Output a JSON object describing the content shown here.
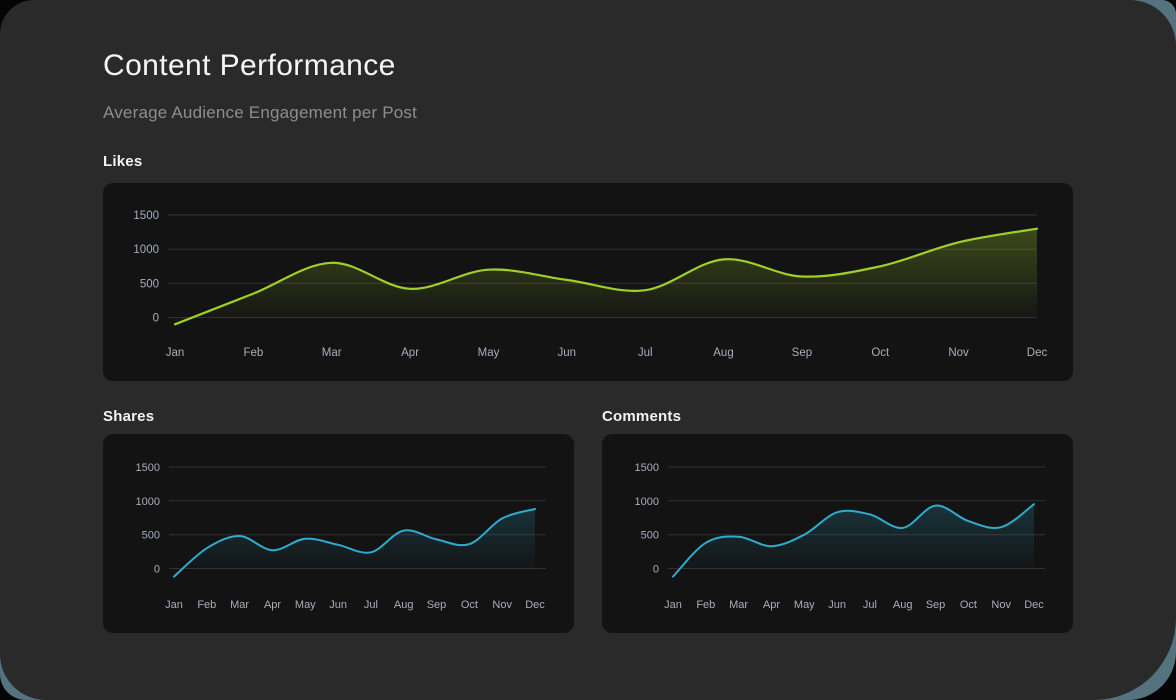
{
  "page": {
    "title": "Content Performance",
    "subtitle": "Average Audience Engagement per Post"
  },
  "colors": {
    "page_bg": "#050505",
    "backdrop_accent": "#54737e",
    "panel_bg": "#2a2a2a",
    "card_bg": "#131313",
    "title_text": "#f5f5f5",
    "subtitle_text": "#8d8d8d",
    "axis_text": "#a8adbd",
    "gridline": "rgba(255,255,255,0.13)",
    "likes_line": "#9fd02a",
    "shares_line": "#2fabce",
    "comments_line": "#2fabce"
  },
  "chart_data": [
    {
      "type": "area",
      "title": "Likes",
      "x": [
        "Jan",
        "Feb",
        "Mar",
        "Apr",
        "May",
        "Jun",
        "Jul",
        "Aug",
        "Sep",
        "Oct",
        "Nov",
        "Dec"
      ],
      "series": [
        {
          "name": "Likes",
          "values": [
            -100,
            350,
            800,
            420,
            700,
            550,
            400,
            850,
            600,
            750,
            1100,
            1300
          ]
        }
      ],
      "line_color": "#9fd02a",
      "yticks": [
        0,
        500,
        1000,
        1500
      ],
      "ylim": [
        -200,
        1700
      ],
      "grid": true,
      "legend": "none"
    },
    {
      "type": "area",
      "title": "Shares",
      "x": [
        "Jan",
        "Feb",
        "Mar",
        "Apr",
        "May",
        "Jun",
        "Jul",
        "Aug",
        "Sep",
        "Oct",
        "Nov",
        "Dec"
      ],
      "series": [
        {
          "name": "Shares",
          "values": [
            -120,
            300,
            480,
            270,
            440,
            350,
            240,
            560,
            430,
            360,
            740,
            880
          ]
        }
      ],
      "line_color": "#2fabce",
      "yticks": [
        0,
        500,
        1000,
        1500
      ],
      "ylim": [
        -200,
        1700
      ],
      "grid": true,
      "legend": "none"
    },
    {
      "type": "area",
      "title": "Comments",
      "x": [
        "Jan",
        "Feb",
        "Mar",
        "Apr",
        "May",
        "Jun",
        "Jul",
        "Aug",
        "Sep",
        "Oct",
        "Nov",
        "Dec"
      ],
      "series": [
        {
          "name": "Comments",
          "values": [
            -120,
            380,
            470,
            330,
            500,
            830,
            800,
            600,
            930,
            700,
            610,
            950
          ]
        }
      ],
      "line_color": "#2fabce",
      "yticks": [
        0,
        500,
        1000,
        1500
      ],
      "ylim": [
        -200,
        1700
      ],
      "grid": true,
      "legend": "none"
    }
  ]
}
